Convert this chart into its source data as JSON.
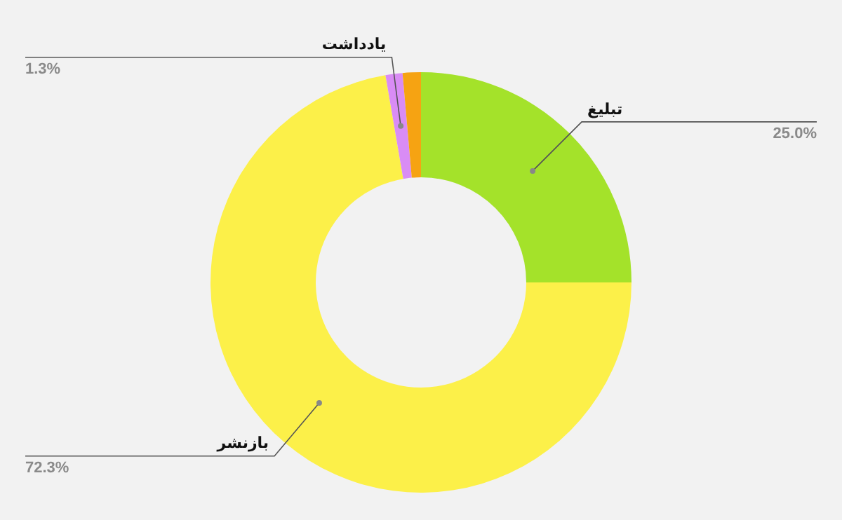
{
  "chart_data": {
    "type": "donut",
    "categories": [
      "تبلیغ",
      "بازنشر",
      "یادداشت",
      null
    ],
    "values": [
      25.0,
      72.3,
      1.3,
      1.4
    ],
    "colors": [
      "#a4e22a",
      "#fcf049",
      "#d98cf5",
      "#f6a312"
    ],
    "value_labels": [
      "25.0%",
      "72.3%",
      "1.3%",
      null
    ],
    "legend": false
  }
}
